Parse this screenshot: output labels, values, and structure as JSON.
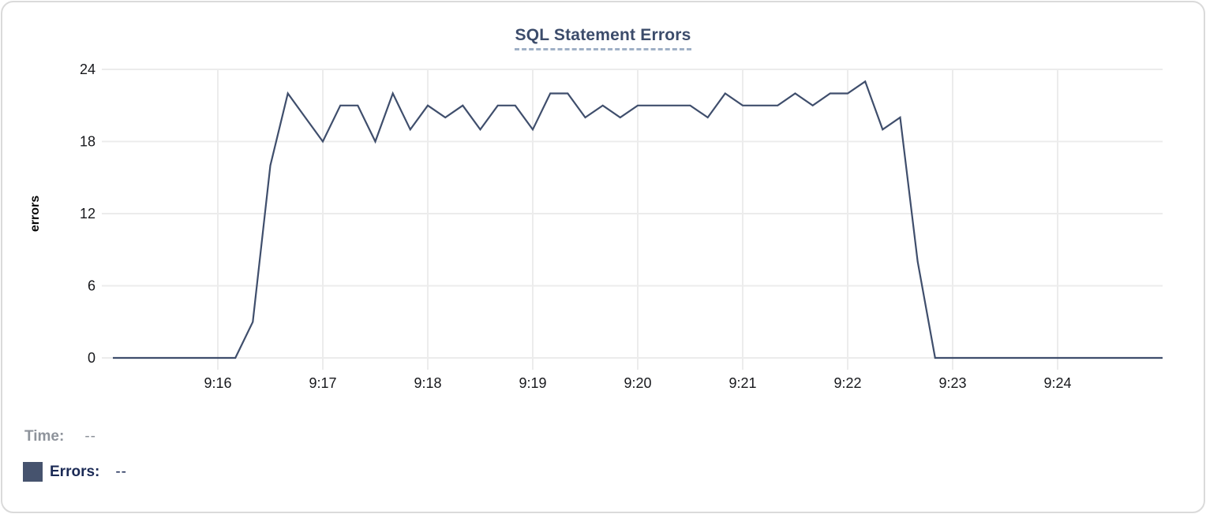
{
  "chart_data": {
    "type": "line",
    "title": "SQL Statement Errors",
    "xlabel": "",
    "ylabel": "errors",
    "x_domain": [
      "9:15:00",
      "9:25:00"
    ],
    "ylim": [
      0,
      24
    ],
    "y_ticks": [
      0,
      6,
      12,
      18,
      24
    ],
    "x_ticks": [
      "9:16",
      "9:17",
      "9:18",
      "9:19",
      "9:20",
      "9:21",
      "9:22",
      "9:23",
      "9:24"
    ],
    "grid": true,
    "series": [
      {
        "name": "Errors",
        "color": "#3f4e6c",
        "times": [
          "9:15:00",
          "9:15:10",
          "9:15:20",
          "9:15:30",
          "9:15:40",
          "9:15:50",
          "9:16:00",
          "9:16:10",
          "9:16:20",
          "9:16:30",
          "9:16:40",
          "9:16:50",
          "9:17:00",
          "9:17:10",
          "9:17:20",
          "9:17:30",
          "9:17:40",
          "9:17:50",
          "9:18:00",
          "9:18:10",
          "9:18:20",
          "9:18:30",
          "9:18:40",
          "9:18:50",
          "9:19:00",
          "9:19:10",
          "9:19:20",
          "9:19:30",
          "9:19:40",
          "9:19:50",
          "9:20:00",
          "9:20:10",
          "9:20:20",
          "9:20:30",
          "9:20:40",
          "9:20:50",
          "9:21:00",
          "9:21:10",
          "9:21:20",
          "9:21:30",
          "9:21:40",
          "9:21:50",
          "9:22:00",
          "9:22:10",
          "9:22:20",
          "9:22:30",
          "9:22:40",
          "9:22:50",
          "9:23:00",
          "9:23:10",
          "9:23:20",
          "9:23:30",
          "9:23:40",
          "9:23:50",
          "9:24:00",
          "9:24:10",
          "9:24:20",
          "9:24:30",
          "9:24:40",
          "9:24:50",
          "9:25:00"
        ],
        "values": [
          0,
          0,
          0,
          0,
          0,
          0,
          0,
          0,
          3,
          16,
          22,
          20,
          18,
          21,
          21,
          18,
          22,
          19,
          21,
          20,
          21,
          19,
          21,
          21,
          19,
          22,
          22,
          20,
          21,
          20,
          21,
          21,
          21,
          21,
          20,
          22,
          21,
          21,
          21,
          22,
          21,
          22,
          22,
          23,
          19,
          20,
          8,
          0,
          0,
          0,
          0,
          0,
          0,
          0,
          0,
          0,
          0,
          0,
          0,
          0,
          0
        ]
      }
    ]
  },
  "tooltip": {
    "time_label": "Time:",
    "time_value": "--",
    "errors_label": "Errors:",
    "errors_value": "--"
  },
  "colors": {
    "line": "#3f4e6c",
    "legend_swatch": "#46536e",
    "title_text": "#3c4c6b",
    "time_label_text": "#8e939b",
    "errors_label_text": "#1b2a55",
    "grid": "#ececec"
  }
}
